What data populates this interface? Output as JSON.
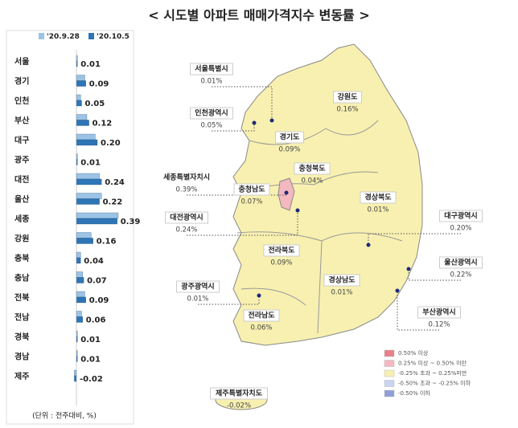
{
  "title": "< 시도별 아파트 매매가격지수 변동률 >",
  "chart_data": {
    "type": "hbar",
    "categories": [
      "서울",
      "경기",
      "인천",
      "부산",
      "대구",
      "광주",
      "대전",
      "울산",
      "세종",
      "강원",
      "충북",
      "충남",
      "전북",
      "전남",
      "경북",
      "경남",
      "제주"
    ],
    "series": [
      {
        "name": "'20.9.28",
        "color": "#9cc3e6",
        "values": [
          0.01,
          0.08,
          0.04,
          0.1,
          0.18,
          0.01,
          0.22,
          0.24,
          0.4,
          0.14,
          0.04,
          0.06,
          0.08,
          0.05,
          0.01,
          0.01,
          -0.02
        ]
      },
      {
        "name": "'20.10.5",
        "color": "#2e75b6",
        "values": [
          0.01,
          0.09,
          0.05,
          0.12,
          0.2,
          0.01,
          0.24,
          0.22,
          0.39,
          0.16,
          0.04,
          0.07,
          0.09,
          0.06,
          0.01,
          0.01,
          -0.02
        ],
        "value_labels": [
          "0.01",
          "0.09",
          "0.05",
          "0.12",
          "0.20",
          "0.01",
          "0.24",
          "0.22",
          "0.39",
          "0.16",
          "0.04",
          "0.07",
          "0.09",
          "0.06",
          "0.01",
          "0.01",
          "-0.02"
        ]
      }
    ],
    "xlim": [
      -0.5,
      0.5
    ],
    "note": "(단위 : 전주대비, %)"
  },
  "map": {
    "regions": [
      {
        "name": "서울특별시",
        "value": "0.01%"
      },
      {
        "name": "인천광역시",
        "value": "0.05%"
      },
      {
        "name": "세종특별자치시",
        "value": "0.39%"
      },
      {
        "name": "대전광역시",
        "value": "0.24%"
      },
      {
        "name": "광주광역시",
        "value": "0.01%"
      },
      {
        "name": "강원도",
        "value": "0.16%"
      },
      {
        "name": "경기도",
        "value": "0.09%"
      },
      {
        "name": "충청북도",
        "value": "0.04%"
      },
      {
        "name": "충청남도",
        "value": "0.07%"
      },
      {
        "name": "경상북도",
        "value": "0.01%"
      },
      {
        "name": "대구광역시",
        "value": "0.20%"
      },
      {
        "name": "전라북도",
        "value": "0.09%"
      },
      {
        "name": "울산광역시",
        "value": "0.22%"
      },
      {
        "name": "경상남도",
        "value": "0.01%"
      },
      {
        "name": "부산광역시",
        "value": "0.12%"
      },
      {
        "name": "전라남도",
        "value": "0.06%"
      },
      {
        "name": "제주특별자치도",
        "value": "-0.02%"
      }
    ],
    "legend": [
      {
        "label": "0.50% 이상",
        "color": "#e8808a"
      },
      {
        "label": "0.25% 이상 ~ 0.50% 미만",
        "color": "#f4b8c0"
      },
      {
        "label": "-0.25% 초과 ~ 0.25%미만",
        "color": "#f7f0b0"
      },
      {
        "label": "-0.50% 초과 ~ -0.25% 이하",
        "color": "#c8d4f0"
      },
      {
        "label": "-0.50% 이하",
        "color": "#8f9fd6"
      }
    ]
  }
}
